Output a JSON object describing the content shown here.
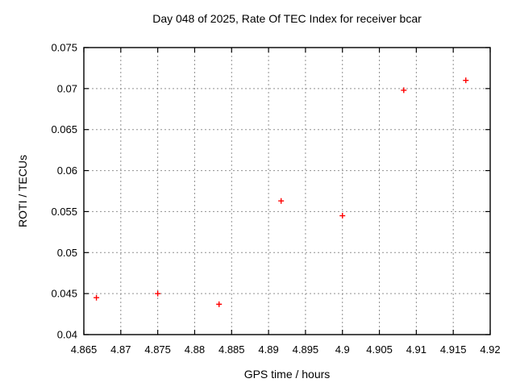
{
  "chart_data": {
    "type": "scatter",
    "title": "Day 048 of 2025, Rate Of TEC Index for receiver bcar",
    "xlabel": "GPS time / hours",
    "ylabel": "ROTI / TECUs",
    "xlim": [
      4.865,
      4.92
    ],
    "ylim": [
      0.04,
      0.075
    ],
    "grid": true,
    "legend": false,
    "x_ticks": [
      {
        "value": 4.865,
        "label": "4.865"
      },
      {
        "value": 4.87,
        "label": "4.87"
      },
      {
        "value": 4.875,
        "label": "4.875"
      },
      {
        "value": 4.88,
        "label": "4.88"
      },
      {
        "value": 4.885,
        "label": "4.885"
      },
      {
        "value": 4.89,
        "label": "4.89"
      },
      {
        "value": 4.895,
        "label": "4.895"
      },
      {
        "value": 4.9,
        "label": "4.9"
      },
      {
        "value": 4.905,
        "label": "4.905"
      },
      {
        "value": 4.91,
        "label": "4.91"
      },
      {
        "value": 4.915,
        "label": "4.915"
      },
      {
        "value": 4.92,
        "label": "4.92"
      }
    ],
    "y_ticks": [
      {
        "value": 0.04,
        "label": "0.04"
      },
      {
        "value": 0.045,
        "label": "0.045"
      },
      {
        "value": 0.05,
        "label": "0.05"
      },
      {
        "value": 0.055,
        "label": "0.055"
      },
      {
        "value": 0.06,
        "label": "0.06"
      },
      {
        "value": 0.065,
        "label": "0.065"
      },
      {
        "value": 0.07,
        "label": "0.07"
      },
      {
        "value": 0.075,
        "label": "0.075"
      }
    ],
    "series": [
      {
        "name": "",
        "marker": "plus",
        "points": [
          {
            "x": 4.8667,
            "y": 0.0445
          },
          {
            "x": 4.875,
            "y": 0.045
          },
          {
            "x": 4.8833,
            "y": 0.0437
          },
          {
            "x": 4.8917,
            "y": 0.0563
          },
          {
            "x": 4.9,
            "y": 0.0545
          },
          {
            "x": 4.9083,
            "y": 0.0698
          },
          {
            "x": 4.9167,
            "y": 0.071
          }
        ]
      }
    ],
    "colors": {
      "marker": "#ff0000",
      "grid": "#909090",
      "frame": "#000000",
      "background": "#ffffff",
      "text": "#000000"
    }
  }
}
